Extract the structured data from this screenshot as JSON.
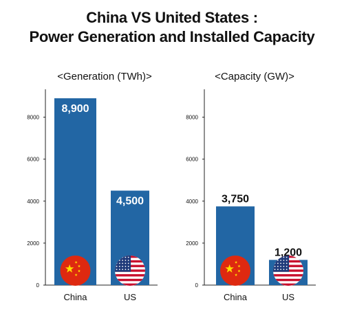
{
  "title": {
    "line1": "China VS United States :",
    "line2": "Power Generation and Installed Capacity"
  },
  "colors": {
    "bar": "#2266a4",
    "value_inside": "#ffffff",
    "value_outside": "#111111",
    "axis": "#222222"
  },
  "chart_data": [
    {
      "type": "bar",
      "title": "<Generation (TWh)>",
      "categories": [
        "China",
        "US"
      ],
      "values": [
        8900,
        4500
      ],
      "value_labels": [
        "8,900",
        "4,500"
      ],
      "label_position": [
        "inside",
        "inside"
      ],
      "yticks": [
        "0",
        "2000",
        "4000",
        "6000",
        "8000"
      ],
      "ylim": [
        0,
        9000
      ],
      "icons": [
        "china-flag-icon",
        "us-flag-icon"
      ],
      "grid": false
    },
    {
      "type": "bar",
      "title": "<Capacity (GW)>",
      "categories": [
        "China",
        "US"
      ],
      "values": [
        3750,
        1200
      ],
      "value_labels": [
        "3,750",
        "1,200"
      ],
      "label_position": [
        "above",
        "above"
      ],
      "yticks": [
        "0",
        "2000",
        "4000",
        "6000",
        "8000"
      ],
      "ylim": [
        0,
        9000
      ],
      "icons": [
        "china-flag-icon",
        "us-flag-icon"
      ],
      "grid": false
    }
  ]
}
